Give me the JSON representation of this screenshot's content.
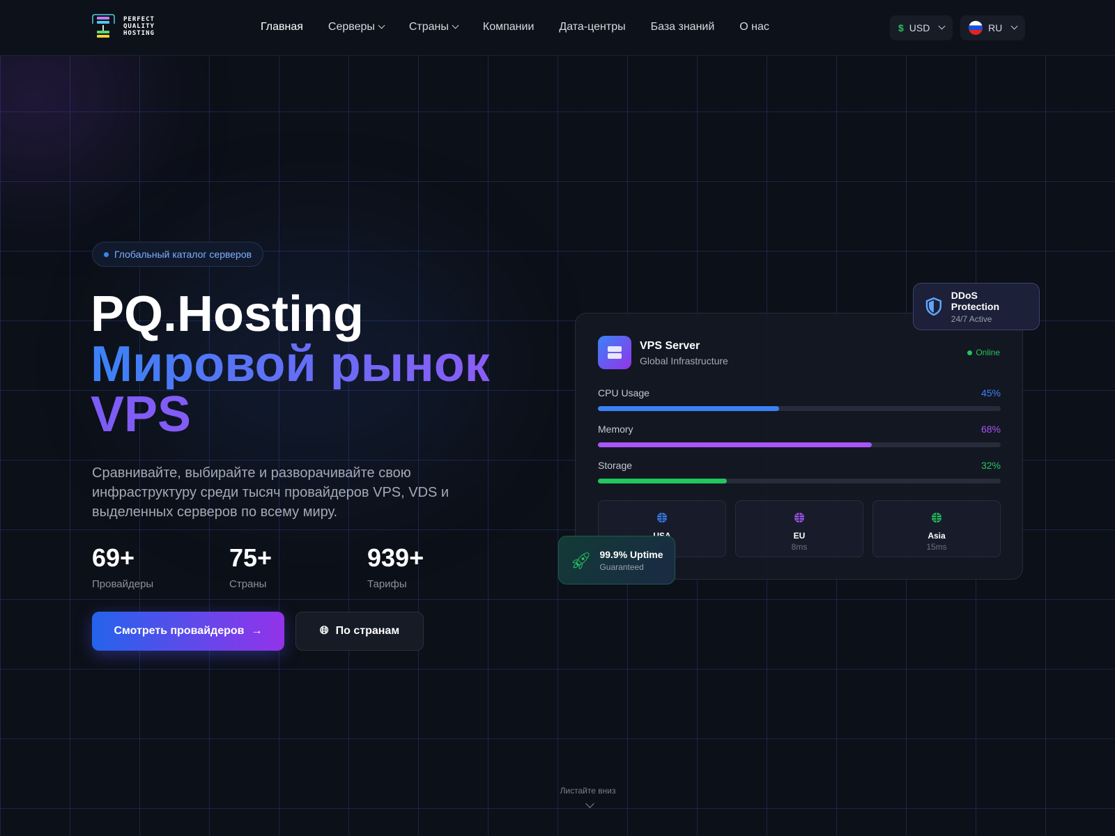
{
  "header": {
    "logo_text": [
      "PERFECT",
      "QUALITY",
      "HOSTING"
    ],
    "nav": [
      {
        "label": "Главная",
        "dropdown": false
      },
      {
        "label": "Серверы",
        "dropdown": true
      },
      {
        "label": "Страны",
        "dropdown": true
      },
      {
        "label": "Компании",
        "dropdown": false
      },
      {
        "label": "Дата-центры",
        "dropdown": false
      },
      {
        "label": "База знаний",
        "dropdown": false
      },
      {
        "label": "О нас",
        "dropdown": false
      }
    ],
    "currency": {
      "symbol": "$",
      "value": "USD"
    },
    "language": {
      "value": "RU",
      "flag-icon": "russia-flag"
    }
  },
  "hero": {
    "badge": "Глобальный каталог серверов",
    "title_line1": "PQ.Hosting",
    "title_line2": "Мировой рынок",
    "title_line3": "VPS",
    "description": "Сравнивайте, выбирайте и разворачивайте свою инфраструктуру среди тысяч провайдеров VPS, VDS и выделенных серверов по всему миру.",
    "stats": [
      {
        "value": "69+",
        "label": "Провайдеры"
      },
      {
        "value": "75+",
        "label": "Страны"
      },
      {
        "value": "939+",
        "label": "Тарифы"
      }
    ],
    "primary_button": "Смотреть провайдеров",
    "secondary_button": "По странам"
  },
  "card": {
    "title": "VPS Server",
    "subtitle": "Global Infrastructure",
    "status": "Online",
    "metrics": [
      {
        "label": "CPU Usage",
        "value": "45%",
        "percent": 45,
        "color": "#3b82f6"
      },
      {
        "label": "Memory",
        "value": "68%",
        "percent": 68,
        "color": "#a855f7"
      },
      {
        "label": "Storage",
        "value": "32%",
        "percent": 32,
        "color": "#22c55e"
      }
    ],
    "regions": [
      {
        "name": "USA",
        "latency": "",
        "color": "#3b82f6"
      },
      {
        "name": "EU",
        "latency": "8ms",
        "color": "#a855f7"
      },
      {
        "name": "Asia",
        "latency": "15ms",
        "color": "#22c55e"
      }
    ]
  },
  "ddos": {
    "title": "DDoS Protection",
    "subtitle": "24/7 Active"
  },
  "uptime": {
    "title": "99.9% Uptime",
    "subtitle": "Guaranteed"
  },
  "scroll_hint": "Листайте вниз",
  "colors": {
    "accent_blue": "#3b82f6",
    "accent_purple": "#8b5cf6",
    "online": "#22c55e"
  }
}
